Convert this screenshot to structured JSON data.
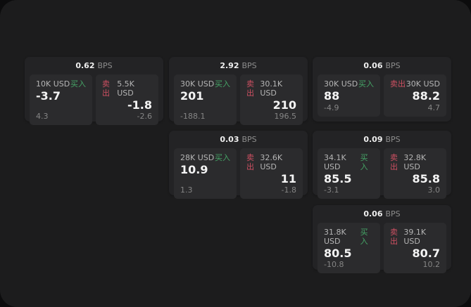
{
  "labels": {
    "buy": "买入",
    "sell": "卖出",
    "bps_unit": "BPS"
  },
  "colors": {
    "page_background": "#0c0c0d",
    "panel_background": "#1c1c1d",
    "card_background": "#232325",
    "subpanel_background": "#2b2b2d",
    "buy_green": "#45a466",
    "sell_red": "#ce5062",
    "primary_text": "#f4f4f4",
    "muted_text": "#858585"
  },
  "cards": [
    {
      "bps": "0.62",
      "buy": {
        "amount": "10K USD",
        "price": "-3.7",
        "delta": "4.3"
      },
      "sell": {
        "amount": "5.5K USD",
        "price": "-1.8",
        "delta": "-2.6"
      }
    },
    {
      "bps": "2.92",
      "buy": {
        "amount": "30K USD",
        "price": "201",
        "delta": "-188.1"
      },
      "sell": {
        "amount": "30.1K USD",
        "price": "210",
        "delta": "196.5"
      }
    },
    {
      "bps": "0.06",
      "buy": {
        "amount": "30K USD",
        "price": "88",
        "delta": "-4.9"
      },
      "sell": {
        "amount": "30K USD",
        "price": "88.2",
        "delta": "4.7"
      }
    },
    {
      "bps": "0.03",
      "buy": {
        "amount": "28K USD",
        "price": "10.9",
        "delta": "1.3"
      },
      "sell": {
        "amount": "32.6K USD",
        "price": "11",
        "delta": "-1.8"
      }
    },
    {
      "bps": "0.09",
      "buy": {
        "amount": "34.1K USD",
        "price": "85.5",
        "delta": "-3.1"
      },
      "sell": {
        "amount": "32.8K USD",
        "price": "85.8",
        "delta": "3.0"
      }
    },
    {
      "bps": "0.06",
      "buy": {
        "amount": "31.8K USD",
        "price": "80.5",
        "delta": "-10.8"
      },
      "sell": {
        "amount": "39.1K USD",
        "price": "80.7",
        "delta": "10.2"
      }
    }
  ]
}
